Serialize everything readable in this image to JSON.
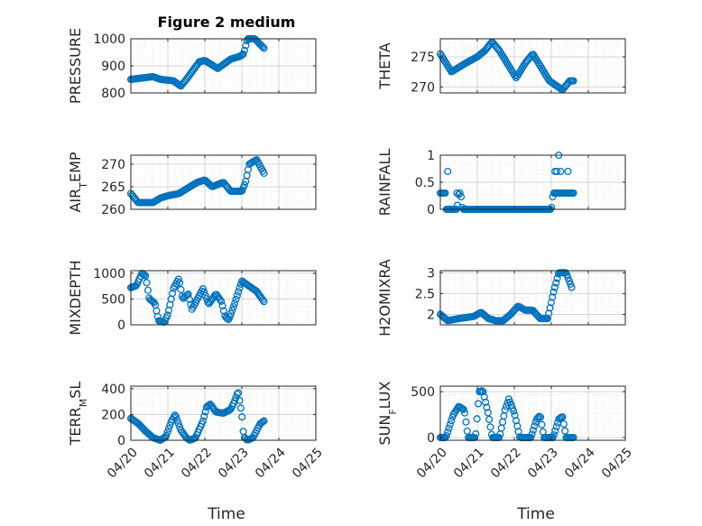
{
  "figure": {
    "title": "Figure 2 medium",
    "xlabel": "Time"
  },
  "chart_data": [
    {
      "type": "scatter",
      "ylabel": "PRESSURE",
      "ylim": [
        800,
        1000
      ],
      "yticks": [
        "800",
        "900",
        "1000"
      ],
      "ytick_values": [
        800,
        900,
        1000
      ],
      "xlim": [
        0,
        5
      ],
      "xticks": [
        "04/20",
        "04/21",
        "04/22",
        "04/23",
        "04/24",
        "04/25"
      ],
      "show_xticklabels": false,
      "grid": "on",
      "knots": [
        [
          0,
          850
        ],
        [
          0.6,
          860
        ],
        [
          0.8,
          850
        ],
        [
          1.15,
          845
        ],
        [
          1.35,
          825
        ],
        [
          1.5,
          850
        ],
        [
          1.85,
          915
        ],
        [
          2.0,
          920
        ],
        [
          2.35,
          890
        ],
        [
          2.7,
          925
        ],
        [
          2.95,
          935
        ],
        [
          3.05,
          945
        ],
        [
          3.15,
          1000
        ],
        [
          3.35,
          1000
        ],
        [
          3.6,
          965
        ]
      ]
    },
    {
      "type": "scatter",
      "ylabel": "THETA",
      "ylim": [
        269,
        278
      ],
      "yticks": [
        "270",
        "275"
      ],
      "ytick_values": [
        270,
        275
      ],
      "xlim": [
        0,
        5
      ],
      "xticks": [
        "04/20",
        "04/21",
        "04/22",
        "04/23",
        "04/24",
        "04/25"
      ],
      "show_xticklabels": false,
      "grid": "on",
      "knots": [
        [
          0,
          275.5
        ],
        [
          0.3,
          272.5
        ],
        [
          0.7,
          274
        ],
        [
          1.0,
          275
        ],
        [
          1.2,
          276
        ],
        [
          1.4,
          277.5
        ],
        [
          1.6,
          276
        ],
        [
          1.9,
          273
        ],
        [
          2.05,
          271.5
        ],
        [
          2.3,
          274
        ],
        [
          2.5,
          275.5
        ],
        [
          2.75,
          273
        ],
        [
          2.95,
          271
        ],
        [
          3.3,
          269.5
        ],
        [
          3.5,
          271
        ],
        [
          3.6,
          271
        ]
      ]
    },
    {
      "type": "scatter",
      "ylabel_main": "AIR",
      "ylabel_sub": "T",
      "ylabel_rest": "EMP",
      "ylim": [
        260,
        272
      ],
      "yticks": [
        "260",
        "265",
        "270"
      ],
      "ytick_values": [
        260,
        265,
        270
      ],
      "xlim": [
        0,
        5
      ],
      "xticks": [
        "04/20",
        "04/21",
        "04/22",
        "04/23",
        "04/24",
        "04/25"
      ],
      "show_xticklabels": false,
      "grid": "on",
      "knots": [
        [
          0,
          263.5
        ],
        [
          0.2,
          261.5
        ],
        [
          0.6,
          261.5
        ],
        [
          0.8,
          262.5
        ],
        [
          1.0,
          263
        ],
        [
          1.3,
          263.5
        ],
        [
          1.6,
          265
        ],
        [
          1.8,
          266
        ],
        [
          2.0,
          266.5
        ],
        [
          2.2,
          265
        ],
        [
          2.5,
          266
        ],
        [
          2.7,
          264
        ],
        [
          3.0,
          264
        ],
        [
          3.1,
          266
        ],
        [
          3.2,
          270
        ],
        [
          3.4,
          271
        ],
        [
          3.6,
          268
        ]
      ]
    },
    {
      "type": "scatter",
      "ylabel": "RAINFALL",
      "ylim": [
        0,
        1
      ],
      "yticks": [
        "0",
        "0.5",
        "1"
      ],
      "ytick_values": [
        0,
        0.5,
        1
      ],
      "xlim": [
        0,
        5
      ],
      "xticks": [
        "04/20",
        "04/21",
        "04/22",
        "04/23",
        "04/24",
        "04/25"
      ],
      "show_xticklabels": false,
      "grid": "on",
      "knots": [
        [
          0,
          0.3
        ],
        [
          0.15,
          0.3
        ],
        [
          0.16,
          0.0
        ],
        [
          0.45,
          0.0
        ],
        [
          0.5,
          0.3
        ],
        [
          0.55,
          0.3
        ],
        [
          0.6,
          0.0
        ],
        [
          3.0,
          0.0
        ],
        [
          3.05,
          0.3
        ],
        [
          3.25,
          0.3
        ],
        [
          3.6,
          0.3
        ]
      ],
      "extra_points": [
        [
          0.2,
          0.7
        ],
        [
          0.45,
          0.3
        ],
        [
          3.15,
          0.7
        ],
        [
          3.2,
          1.0
        ],
        [
          3.25,
          0.7
        ],
        [
          3.45,
          0.7
        ],
        [
          3.1,
          0.7
        ]
      ]
    },
    {
      "type": "scatter",
      "ylabel": "MIXDEPTH",
      "ylim": [
        0,
        1050
      ],
      "yticks": [
        "0",
        "500",
        "1000"
      ],
      "ytick_values": [
        0,
        500,
        1000
      ],
      "xlim": [
        0,
        5
      ],
      "xticks": [
        "04/20",
        "04/21",
        "04/22",
        "04/23",
        "04/24",
        "04/25"
      ],
      "show_xticklabels": false,
      "grid": "on",
      "knots": [
        [
          0,
          720
        ],
        [
          0.15,
          760
        ],
        [
          0.3,
          1000
        ],
        [
          0.4,
          950
        ],
        [
          0.5,
          500
        ],
        [
          0.65,
          420
        ],
        [
          0.75,
          80
        ],
        [
          0.9,
          50
        ],
        [
          1.0,
          200
        ],
        [
          1.15,
          700
        ],
        [
          1.3,
          900
        ],
        [
          1.4,
          500
        ],
        [
          1.55,
          600
        ],
        [
          1.65,
          300
        ],
        [
          1.8,
          500
        ],
        [
          1.95,
          700
        ],
        [
          2.1,
          400
        ],
        [
          2.3,
          600
        ],
        [
          2.45,
          450
        ],
        [
          2.55,
          150
        ],
        [
          2.65,
          100
        ],
        [
          2.8,
          400
        ],
        [
          3.0,
          850
        ],
        [
          3.2,
          750
        ],
        [
          3.4,
          650
        ],
        [
          3.6,
          450
        ]
      ]
    },
    {
      "type": "scatter",
      "ylabel": "H2OMIXRA",
      "ylim": [
        1.75,
        3.05
      ],
      "yticks": [
        "2",
        "2.5",
        "3"
      ],
      "ytick_values": [
        2,
        2.5,
        3
      ],
      "xlim": [
        0,
        5
      ],
      "xticks": [
        "04/20",
        "04/21",
        "04/22",
        "04/23",
        "04/24",
        "04/25"
      ],
      "show_xticklabels": false,
      "grid": "on",
      "knots": [
        [
          0,
          2.0
        ],
        [
          0.2,
          1.85
        ],
        [
          0.5,
          1.9
        ],
        [
          0.9,
          1.95
        ],
        [
          1.1,
          2.05
        ],
        [
          1.3,
          1.9
        ],
        [
          1.5,
          1.85
        ],
        [
          1.7,
          1.85
        ],
        [
          1.9,
          2.0
        ],
        [
          2.1,
          2.2
        ],
        [
          2.3,
          2.1
        ],
        [
          2.5,
          2.1
        ],
        [
          2.7,
          1.9
        ],
        [
          2.9,
          1.9
        ],
        [
          3.05,
          2.5
        ],
        [
          3.2,
          3.0
        ],
        [
          3.4,
          3.0
        ],
        [
          3.55,
          2.65
        ]
      ]
    },
    {
      "type": "scatter",
      "ylabel_main": "TERR",
      "ylabel_sub": "M",
      "ylabel_rest": "SL",
      "ylim": [
        0,
        420
      ],
      "yticks": [
        "0",
        "200",
        "400"
      ],
      "ytick_values": [
        0,
        200,
        400
      ],
      "xlim": [
        0,
        5
      ],
      "xticks": [
        "04/20",
        "04/21",
        "04/22",
        "04/23",
        "04/24",
        "04/25"
      ],
      "show_xticklabels": true,
      "grid": "on",
      "knots": [
        [
          0,
          170
        ],
        [
          0.2,
          130
        ],
        [
          0.4,
          70
        ],
        [
          0.6,
          20
        ],
        [
          0.8,
          0
        ],
        [
          0.95,
          30
        ],
        [
          1.1,
          150
        ],
        [
          1.2,
          200
        ],
        [
          1.35,
          80
        ],
        [
          1.5,
          20
        ],
        [
          1.6,
          0
        ],
        [
          1.75,
          20
        ],
        [
          1.95,
          150
        ],
        [
          2.05,
          260
        ],
        [
          2.15,
          280
        ],
        [
          2.3,
          220
        ],
        [
          2.5,
          210
        ],
        [
          2.7,
          240
        ],
        [
          2.8,
          300
        ],
        [
          2.9,
          380
        ],
        [
          3.0,
          200
        ],
        [
          3.05,
          30
        ],
        [
          3.15,
          0
        ],
        [
          3.3,
          20
        ],
        [
          3.5,
          130
        ],
        [
          3.6,
          150
        ]
      ]
    },
    {
      "type": "scatter",
      "ylabel_main": "SUN",
      "ylabel_sub": "F",
      "ylabel_rest": "LUX",
      "ylim": [
        -30,
        560
      ],
      "yticks": [
        "0",
        "500"
      ],
      "ytick_values": [
        0,
        500
      ],
      "xlim": [
        0,
        5
      ],
      "xticks": [
        "04/20",
        "04/21",
        "04/22",
        "04/23",
        "04/24",
        "04/25"
      ],
      "show_xticklabels": true,
      "grid": "on",
      "knots": [
        [
          0,
          0
        ],
        [
          0.15,
          0
        ],
        [
          0.35,
          250
        ],
        [
          0.5,
          340
        ],
        [
          0.65,
          300
        ],
        [
          0.75,
          0
        ],
        [
          0.95,
          0
        ],
        [
          1.05,
          500
        ],
        [
          1.15,
          510
        ],
        [
          1.3,
          250
        ],
        [
          1.4,
          0
        ],
        [
          1.6,
          0
        ],
        [
          1.75,
          300
        ],
        [
          1.85,
          420
        ],
        [
          2.0,
          270
        ],
        [
          2.15,
          0
        ],
        [
          2.45,
          0
        ],
        [
          2.6,
          200
        ],
        [
          2.7,
          240
        ],
        [
          2.8,
          0
        ],
        [
          3.05,
          0
        ],
        [
          3.2,
          200
        ],
        [
          3.3,
          230
        ],
        [
          3.4,
          0
        ],
        [
          3.6,
          0
        ]
      ]
    }
  ],
  "colors": {
    "marker": "#0072BD",
    "axes": "#262626",
    "grid": "#d4d4d4"
  }
}
